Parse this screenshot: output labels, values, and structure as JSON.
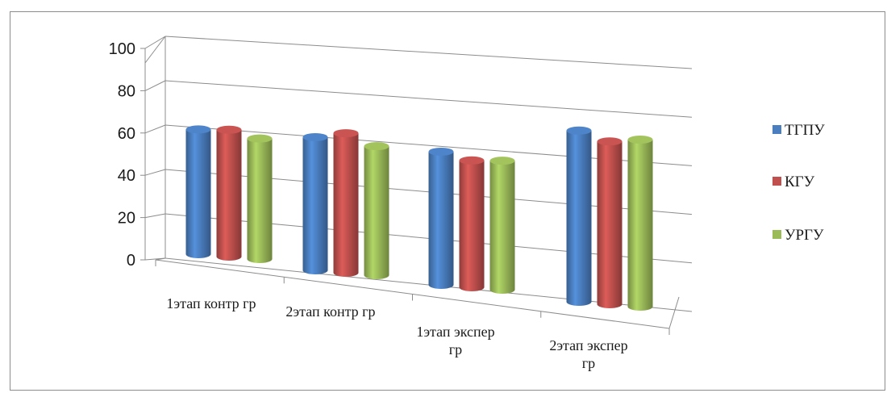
{
  "chart_data": {
    "type": "bar",
    "style": "3d-cylinder",
    "title": "",
    "xlabel": "",
    "ylabel": "",
    "ylim": [
      0,
      100
    ],
    "yticks": [
      "0",
      "20",
      "40",
      "60",
      "80",
      "100"
    ],
    "grid": true,
    "legend_position": "right",
    "categories": [
      "1этап контр гр",
      "2этап контр гр",
      "1этап экспер гр",
      "2этап экспер гр"
    ],
    "series": [
      {
        "name": "ТГПУ",
        "color": "#4a7ebf",
        "values": [
          59,
          63,
          63,
          81
        ]
      },
      {
        "name": "КГУ",
        "color": "#c0504d",
        "values": [
          60,
          66,
          60,
          77
        ]
      },
      {
        "name": "УРГУ",
        "color": "#9bbb59",
        "values": [
          57,
          61,
          61,
          79
        ]
      }
    ]
  }
}
